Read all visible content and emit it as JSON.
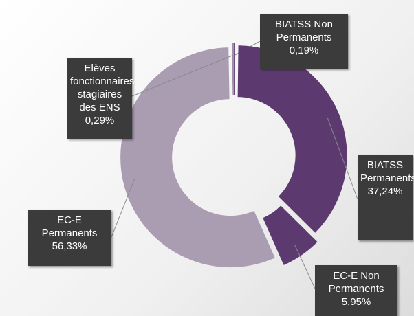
{
  "chart_data": {
    "type": "pie",
    "categories": [
      "BIATSS Non Permanents",
      "BIATSS Permanents",
      "EC-E Non Permanents",
      "EC-E Permanents",
      "Elèves fonctionnaires stagiaires des ENS"
    ],
    "values": [
      0.19,
      37.24,
      5.95,
      56.33,
      0.29
    ],
    "value_labels": [
      "0,19%",
      "37,24%",
      "5,95%",
      "56,33%",
      "0,29%"
    ],
    "colors": [
      "#6a4a7c",
      "#5c3a6f",
      "#5c3a6f",
      "#aa9db2",
      "#9d8ea6"
    ]
  }
}
